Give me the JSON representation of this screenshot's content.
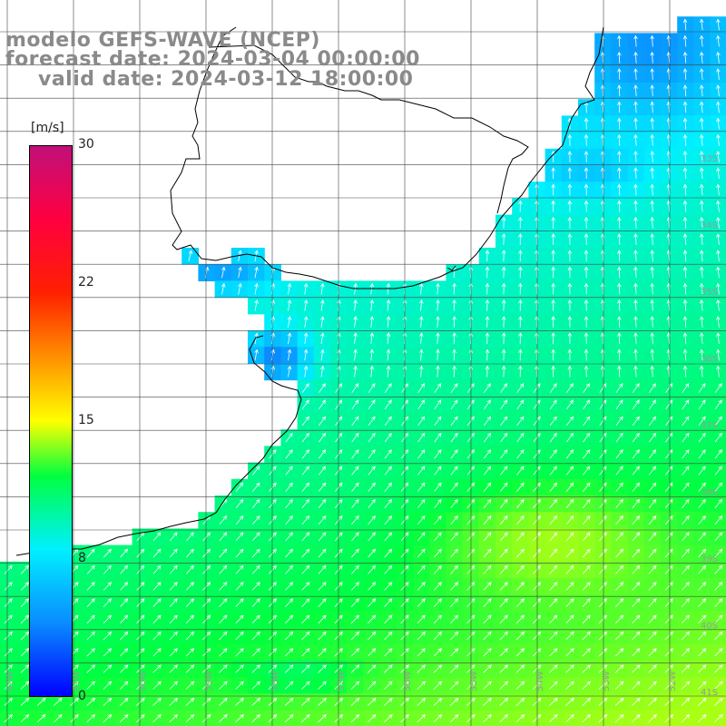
{
  "header": {
    "line1": "modelo GEFS-WAVE (NCEP)",
    "line2": "forecast date: 2024-03-04 00:00:00",
    "line3": "valid date: 2024-03-12 18:00:00"
  },
  "colorbar": {
    "unit": "[m/s]",
    "ticks": [
      "30",
      "22",
      "15",
      "8",
      "0"
    ],
    "min": 0,
    "max": 30,
    "stops": [
      {
        "v": 0,
        "c": "#0000ff"
      },
      {
        "v": 4,
        "c": "#0a8cff"
      },
      {
        "v": 8,
        "c": "#00f0ff"
      },
      {
        "v": 12,
        "c": "#00ff40"
      },
      {
        "v": 15,
        "c": "#ffff00"
      },
      {
        "v": 22,
        "c": "#ff2000"
      },
      {
        "v": 26,
        "c": "#ff0040"
      },
      {
        "v": 30,
        "c": "#c0107a"
      }
    ]
  },
  "map": {
    "lat_labels": [
      "33S",
      "34S",
      "35S",
      "36S",
      "37S",
      "38S",
      "39S",
      "40S",
      "41S"
    ],
    "lon_labels": [
      "62W",
      "61W",
      "60W",
      "59W",
      "58W",
      "57W",
      "56W",
      "55W",
      "54W",
      "53W",
      "52W"
    ],
    "colors": {
      "land": "#ffffff",
      "grid": "#444444",
      "coast": "#000000",
      "arrow": "#ffffff"
    }
  }
}
